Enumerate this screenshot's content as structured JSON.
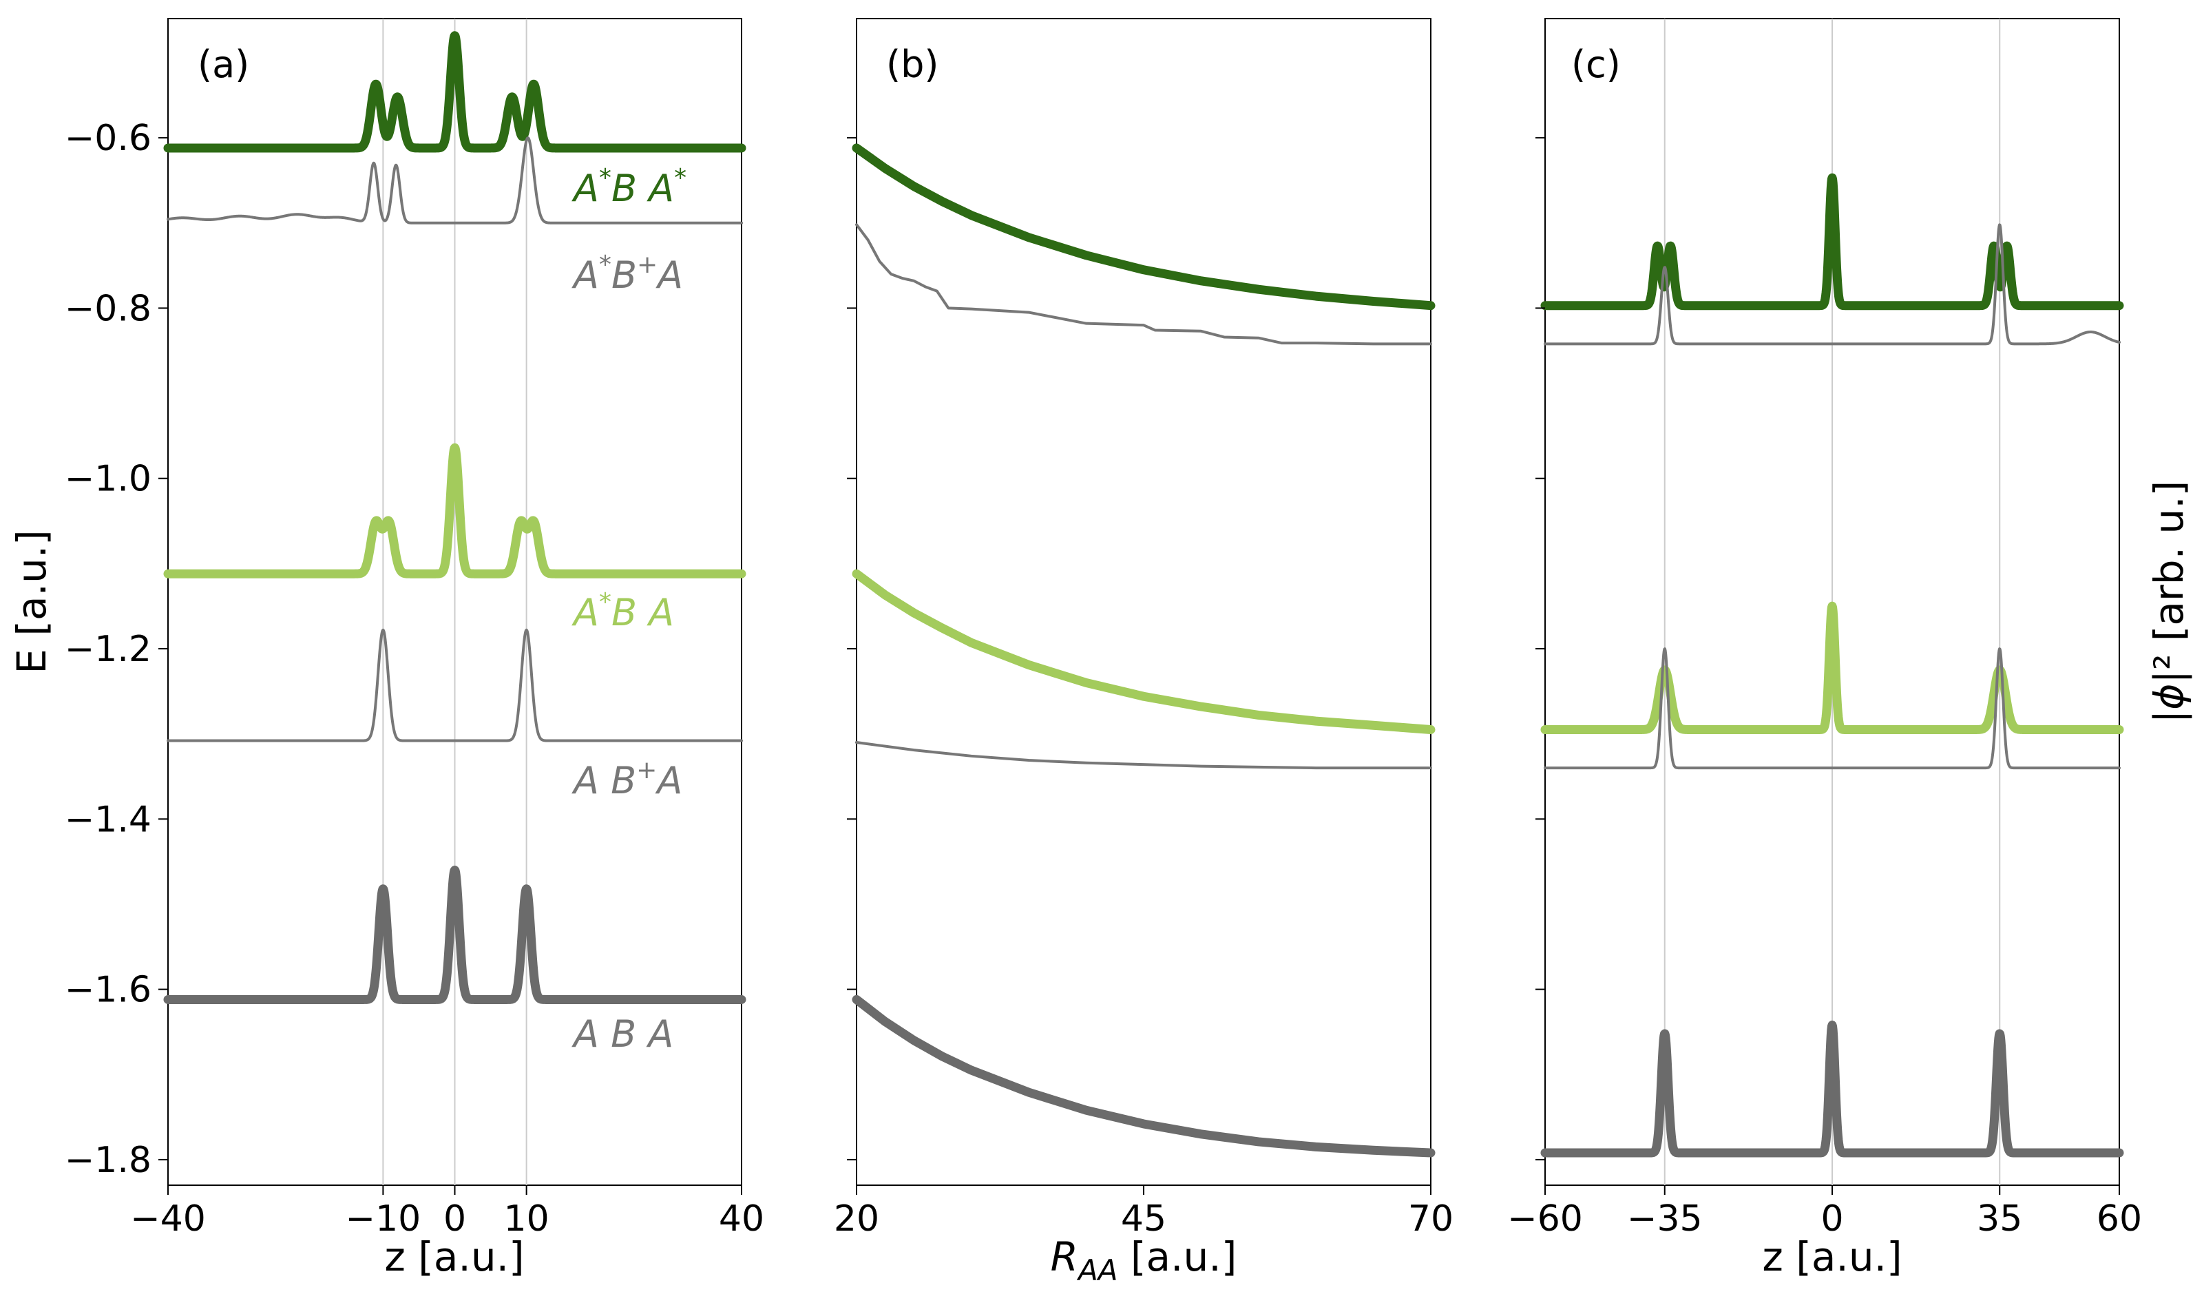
{
  "chart_data": [
    {
      "type": "line",
      "panel_label": "(a)",
      "xlabel": "z [a.u.]",
      "ylabel": "E [a.u.]",
      "xlim": [
        -40,
        40
      ],
      "ylim": [
        -1.83,
        -0.46
      ],
      "xticks": [
        -40,
        -10,
        0,
        10,
        40
      ],
      "xtick_labels": [
        "−40",
        "−10",
        "0",
        "10",
        "40"
      ],
      "yticks": [
        -1.8,
        -1.6,
        -1.4,
        -1.2,
        -1.0,
        -0.8,
        -0.6
      ],
      "ytick_labels": [
        "−1.8",
        "−1.6",
        "−1.4",
        "−1.2",
        "−1.0",
        "−0.8",
        "−0.6"
      ],
      "vlines": [
        -10,
        0,
        10
      ],
      "series": [
        {
          "name": "A*B A*",
          "label_text": "A*B  A*",
          "color": "#2d6a14",
          "thick": true,
          "baseline": -0.612,
          "peaks": [
            {
              "z": -11,
              "height": 0.075,
              "width": 0.7
            },
            {
              "z": -8,
              "height": 0.06,
              "width": 0.7
            },
            {
              "z": 0,
              "height": 0.132,
              "width": 0.6
            },
            {
              "z": 8,
              "height": 0.06,
              "width": 0.7
            },
            {
              "z": 11,
              "height": 0.075,
              "width": 0.7
            }
          ]
        },
        {
          "name": "A*B+A",
          "label_text": "A*B+A",
          "color": "#777777",
          "thick": false,
          "baseline": -0.7,
          "peaks": [
            {
              "z": -11.3,
              "height": 0.07,
              "width": 0.55
            },
            {
              "z": -8.2,
              "height": 0.068,
              "width": 0.55
            },
            {
              "z": 10.2,
              "height": 0.1,
              "width": 0.8
            },
            {
              "z": -38,
              "height": 0.006,
              "width": 2.5
            },
            {
              "z": -30,
              "height": 0.008,
              "width": 2.5
            },
            {
              "z": -22,
              "height": 0.01,
              "width": 2.5
            },
            {
              "z": -16,
              "height": 0.006,
              "width": 2
            }
          ]
        },
        {
          "name": "A*B A",
          "label_text": "A*B  A",
          "color": "#a3cb5c",
          "thick": true,
          "baseline": -1.112,
          "peaks": [
            {
              "z": -11,
              "height": 0.06,
              "width": 0.7
            },
            {
              "z": -9.2,
              "height": 0.06,
              "width": 0.7
            },
            {
              "z": 0,
              "height": 0.148,
              "width": 0.6
            },
            {
              "z": 9.2,
              "height": 0.06,
              "width": 0.7
            },
            {
              "z": 11,
              "height": 0.06,
              "width": 0.7
            }
          ]
        },
        {
          "name": "A B+A",
          "label_text": "A  B+A",
          "color": "#777777",
          "thick": false,
          "baseline": -1.308,
          "peaks": [
            {
              "z": -10,
              "height": 0.13,
              "width": 0.7
            },
            {
              "z": 10,
              "height": 0.13,
              "width": 0.7
            }
          ]
        },
        {
          "name": "A B A",
          "label_text": "A  B  A",
          "color": "#6b6b6b",
          "thick": true,
          "baseline": -1.612,
          "peaks": [
            {
              "z": -10,
              "height": 0.13,
              "width": 0.6
            },
            {
              "z": 0,
              "height": 0.152,
              "width": 0.6
            },
            {
              "z": 10,
              "height": 0.13,
              "width": 0.6
            }
          ]
        }
      ]
    },
    {
      "type": "line",
      "panel_label": "(b)",
      "xlabel": "R_AA [a.u.]",
      "xlabel_main": "R",
      "xlabel_sub": "AA",
      "xlabel_rest": " [a.u.]",
      "xlim": [
        20,
        70
      ],
      "ylim": [
        -1.83,
        -0.46
      ],
      "xticks": [
        20,
        45,
        70
      ],
      "xtick_labels": [
        "20",
        "45",
        "70"
      ],
      "yticks": [
        -1.8,
        -1.6,
        -1.4,
        -1.2,
        -1.0,
        -0.8,
        -0.6
      ],
      "series": [
        {
          "name": "A*B A*",
          "color": "#2d6a14",
          "thick": true,
          "x": [
            20,
            22.5,
            25,
            27.5,
            30,
            35,
            40,
            45,
            50,
            55,
            60,
            65,
            70
          ],
          "y": [
            -0.612,
            -0.636,
            -0.657,
            -0.675,
            -0.691,
            -0.717,
            -0.738,
            -0.755,
            -0.768,
            -0.778,
            -0.786,
            -0.792,
            -0.797
          ]
        },
        {
          "name": "A*B+A",
          "color": "#777777",
          "thick": false,
          "x": [
            20,
            21,
            22,
            23,
            24,
            25,
            26,
            27,
            28,
            30,
            35,
            40,
            45,
            46,
            50,
            52,
            55,
            57,
            60,
            65,
            70
          ],
          "y": [
            -0.702,
            -0.72,
            -0.745,
            -0.76,
            -0.765,
            -0.768,
            -0.775,
            -0.78,
            -0.8,
            -0.801,
            -0.805,
            -0.818,
            -0.82,
            -0.826,
            -0.827,
            -0.834,
            -0.835,
            -0.841,
            -0.841,
            -0.842,
            -0.842
          ]
        },
        {
          "name": "A*B A",
          "color": "#a3cb5c",
          "thick": true,
          "x": [
            20,
            22.5,
            25,
            27.5,
            30,
            35,
            40,
            45,
            50,
            55,
            60,
            65,
            70
          ],
          "y": [
            -1.112,
            -1.137,
            -1.158,
            -1.176,
            -1.193,
            -1.219,
            -1.24,
            -1.256,
            -1.268,
            -1.278,
            -1.285,
            -1.29,
            -1.295
          ]
        },
        {
          "name": "A B+A",
          "color": "#777777",
          "thick": false,
          "x": [
            20,
            25,
            30,
            35,
            40,
            45,
            50,
            55,
            60,
            65,
            70
          ],
          "y": [
            -1.31,
            -1.319,
            -1.326,
            -1.331,
            -1.334,
            -1.336,
            -1.338,
            -1.339,
            -1.34,
            -1.34,
            -1.34
          ]
        },
        {
          "name": "A B A",
          "color": "#6b6b6b",
          "thick": true,
          "x": [
            20,
            22.5,
            25,
            27.5,
            30,
            35,
            40,
            45,
            50,
            55,
            60,
            65,
            70
          ],
          "y": [
            -1.612,
            -1.638,
            -1.66,
            -1.679,
            -1.695,
            -1.721,
            -1.742,
            -1.758,
            -1.77,
            -1.779,
            -1.785,
            -1.789,
            -1.792
          ]
        }
      ]
    },
    {
      "type": "line",
      "panel_label": "(c)",
      "xlabel": "z [a.u.]",
      "ylabel": "|ϕ|² [arb. u.]",
      "ylabel_pre": "|",
      "ylabel_phi": "ϕ",
      "ylabel_post": "|² [arb. u.]",
      "xlim": [
        -60,
        60
      ],
      "ylim": [
        -1.83,
        -0.46
      ],
      "xticks": [
        -60,
        -35,
        0,
        35,
        60
      ],
      "xtick_labels": [
        "−60",
        "−35",
        "0",
        "35",
        "60"
      ],
      "yticks": [
        -1.8,
        -1.6,
        -1.4,
        -1.2,
        -1.0,
        -0.8,
        -0.6
      ],
      "vlines": [
        -35,
        0,
        35
      ],
      "series": [
        {
          "name": "A*B A*",
          "color": "#2d6a14",
          "thick": true,
          "baseline": -0.797,
          "peaks": [
            {
              "z": -36.5,
              "height": 0.07,
              "width": 0.7
            },
            {
              "z": -33.8,
              "height": 0.07,
              "width": 0.7
            },
            {
              "z": 0,
              "height": 0.15,
              "width": 0.6
            },
            {
              "z": 33.8,
              "height": 0.07,
              "width": 0.7
            },
            {
              "z": 36.5,
              "height": 0.07,
              "width": 0.7
            }
          ]
        },
        {
          "name": "A*B+A",
          "color": "#777777",
          "thick": false,
          "baseline": -0.842,
          "peaks": [
            {
              "z": -35,
              "height": 0.09,
              "width": 0.7
            },
            {
              "z": 35,
              "height": 0.14,
              "width": 0.7
            },
            {
              "z": 54,
              "height": 0.014,
              "width": 3
            }
          ]
        },
        {
          "name": "A*B A",
          "color": "#a3cb5c",
          "thick": true,
          "baseline": -1.295,
          "peaks": [
            {
              "z": -35,
              "height": 0.07,
              "width": 1.2
            },
            {
              "z": 0,
              "height": 0.145,
              "width": 0.6
            },
            {
              "z": 35,
              "height": 0.07,
              "width": 1.2
            }
          ]
        },
        {
          "name": "A B+A",
          "color": "#777777",
          "thick": false,
          "baseline": -1.34,
          "peaks": [
            {
              "z": -35,
              "height": 0.14,
              "width": 0.7
            },
            {
              "z": 35,
              "height": 0.14,
              "width": 0.7
            }
          ]
        },
        {
          "name": "A B A",
          "color": "#6b6b6b",
          "thick": true,
          "baseline": -1.792,
          "peaks": [
            {
              "z": -35,
              "height": 0.14,
              "width": 0.7
            },
            {
              "z": 0,
              "height": 0.15,
              "width": 0.6
            },
            {
              "z": 35,
              "height": 0.14,
              "width": 0.7
            }
          ]
        }
      ]
    }
  ]
}
